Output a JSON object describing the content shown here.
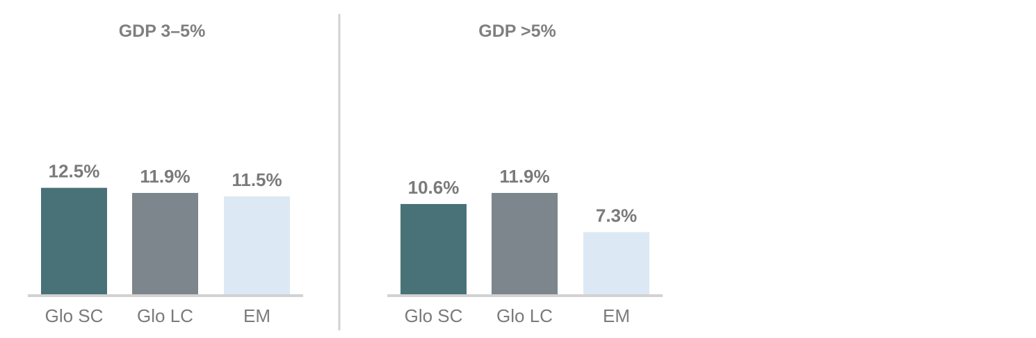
{
  "chart_data": [
    {
      "type": "bar",
      "title": "GDP 3–5%",
      "categories": [
        "Glo SC",
        "Glo LC",
        "EM"
      ],
      "values": [
        12.5,
        11.9,
        11.5
      ],
      "value_labels": [
        "12.5%",
        "11.9%",
        "11.5%"
      ],
      "colors": [
        "#487278",
        "#7d868d",
        "#dce9f4"
      ],
      "ylim": [
        0,
        20
      ],
      "grid": false
    },
    {
      "type": "bar",
      "title": "GDP >5%",
      "categories": [
        "Glo SC",
        "Glo LC",
        "EM"
      ],
      "values": [
        10.6,
        11.9,
        7.3
      ],
      "value_labels": [
        "10.6%",
        "11.9%",
        "7.3%"
      ],
      "colors": [
        "#487278",
        "#7d868d",
        "#dce9f4"
      ],
      "ylim": [
        0,
        20
      ],
      "grid": false
    }
  ],
  "colors": {
    "axis": "#d2d2d2",
    "divider": "#d2d2d2",
    "text": "#7a7a7a"
  }
}
